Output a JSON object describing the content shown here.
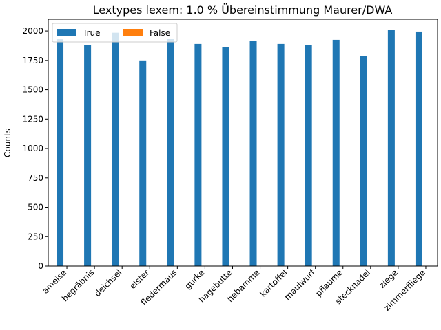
{
  "chart_data": {
    "type": "bar",
    "title": "Lextypes lexem: 1.0 % Übereinstimmung Maurer/DWA",
    "xlabel": "",
    "ylabel": "Counts",
    "ylim": [
      0,
      2100
    ],
    "yticks": [
      0,
      250,
      500,
      750,
      1000,
      1250,
      1500,
      1750,
      2000
    ],
    "categories": [
      "ameise",
      "begräbnis",
      "deichsel",
      "elster",
      "fledermaus",
      "gurke",
      "hagebutte",
      "hebamme",
      "kartoffel",
      "maulwurf",
      "pflaume",
      "stecknadel",
      "ziege",
      "zimmerfliege"
    ],
    "series": [
      {
        "name": "True",
        "color": "#1f77b4",
        "values": [
          1930,
          1880,
          1985,
          1750,
          1935,
          1890,
          1865,
          1915,
          1890,
          1880,
          1925,
          1785,
          2010,
          1995
        ]
      },
      {
        "name": "False",
        "color": "#ff7f0e",
        "values": [
          0,
          0,
          0,
          0,
          0,
          0,
          0,
          0,
          0,
          0,
          0,
          0,
          0,
          0
        ]
      }
    ],
    "legend": "top-left",
    "grid": false
  }
}
